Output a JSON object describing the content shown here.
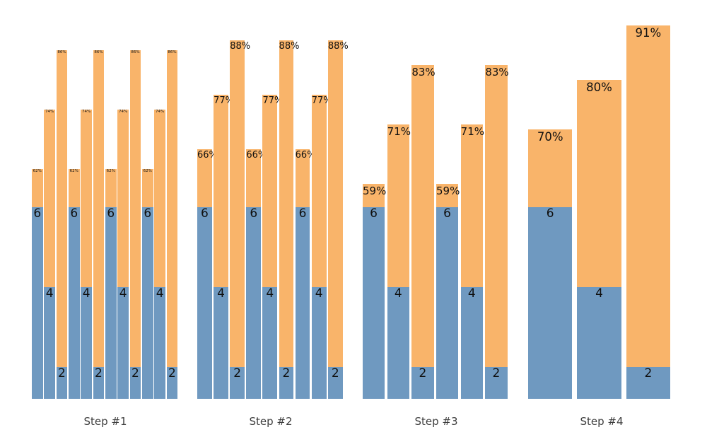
{
  "chart_data": {
    "type": "bar",
    "title": "",
    "xlabel": "",
    "ylabel": "",
    "grid": false,
    "legend": false,
    "categories": [
      "Step #1",
      "Step #2",
      "Step #3",
      "Step #4"
    ],
    "ylim_pct": [
      15.5,
      95.0
    ],
    "blue_segment_top_pct": {
      "6": 54.2,
      "4": 38.1,
      "2": 22.0
    },
    "colors": {
      "blue_segment": "#6f99c0",
      "orange_segment": "#f9b46a",
      "bar_label_text": "#111111",
      "tick_label_text": "#3d3d3d",
      "background": "#ffffff"
    },
    "groups": [
      {
        "label": "Step #1",
        "bars": [
          {
            "die": 6,
            "pct": 62
          },
          {
            "die": 4,
            "pct": 74
          },
          {
            "die": 2,
            "pct": 86
          },
          {
            "die": 6,
            "pct": 62
          },
          {
            "die": 4,
            "pct": 74
          },
          {
            "die": 2,
            "pct": 86
          },
          {
            "die": 6,
            "pct": 62
          },
          {
            "die": 4,
            "pct": 74
          },
          {
            "die": 2,
            "pct": 86
          },
          {
            "die": 6,
            "pct": 62
          },
          {
            "die": 4,
            "pct": 74
          },
          {
            "die": 2,
            "pct": 86
          }
        ]
      },
      {
        "label": "Step #2",
        "bars": [
          {
            "die": 6,
            "pct": 66
          },
          {
            "die": 4,
            "pct": 77
          },
          {
            "die": 2,
            "pct": 88
          },
          {
            "die": 6,
            "pct": 66
          },
          {
            "die": 4,
            "pct": 77
          },
          {
            "die": 2,
            "pct": 88
          },
          {
            "die": 6,
            "pct": 66
          },
          {
            "die": 4,
            "pct": 77
          },
          {
            "die": 2,
            "pct": 88
          }
        ]
      },
      {
        "label": "Step #3",
        "bars": [
          {
            "die": 6,
            "pct": 59
          },
          {
            "die": 4,
            "pct": 71
          },
          {
            "die": 2,
            "pct": 83
          },
          {
            "die": 6,
            "pct": 59
          },
          {
            "die": 4,
            "pct": 71
          },
          {
            "die": 2,
            "pct": 83
          }
        ]
      },
      {
        "label": "Step #4",
        "bars": [
          {
            "die": 6,
            "pct": 70
          },
          {
            "die": 4,
            "pct": 80
          },
          {
            "die": 2,
            "pct": 91
          }
        ]
      }
    ]
  }
}
